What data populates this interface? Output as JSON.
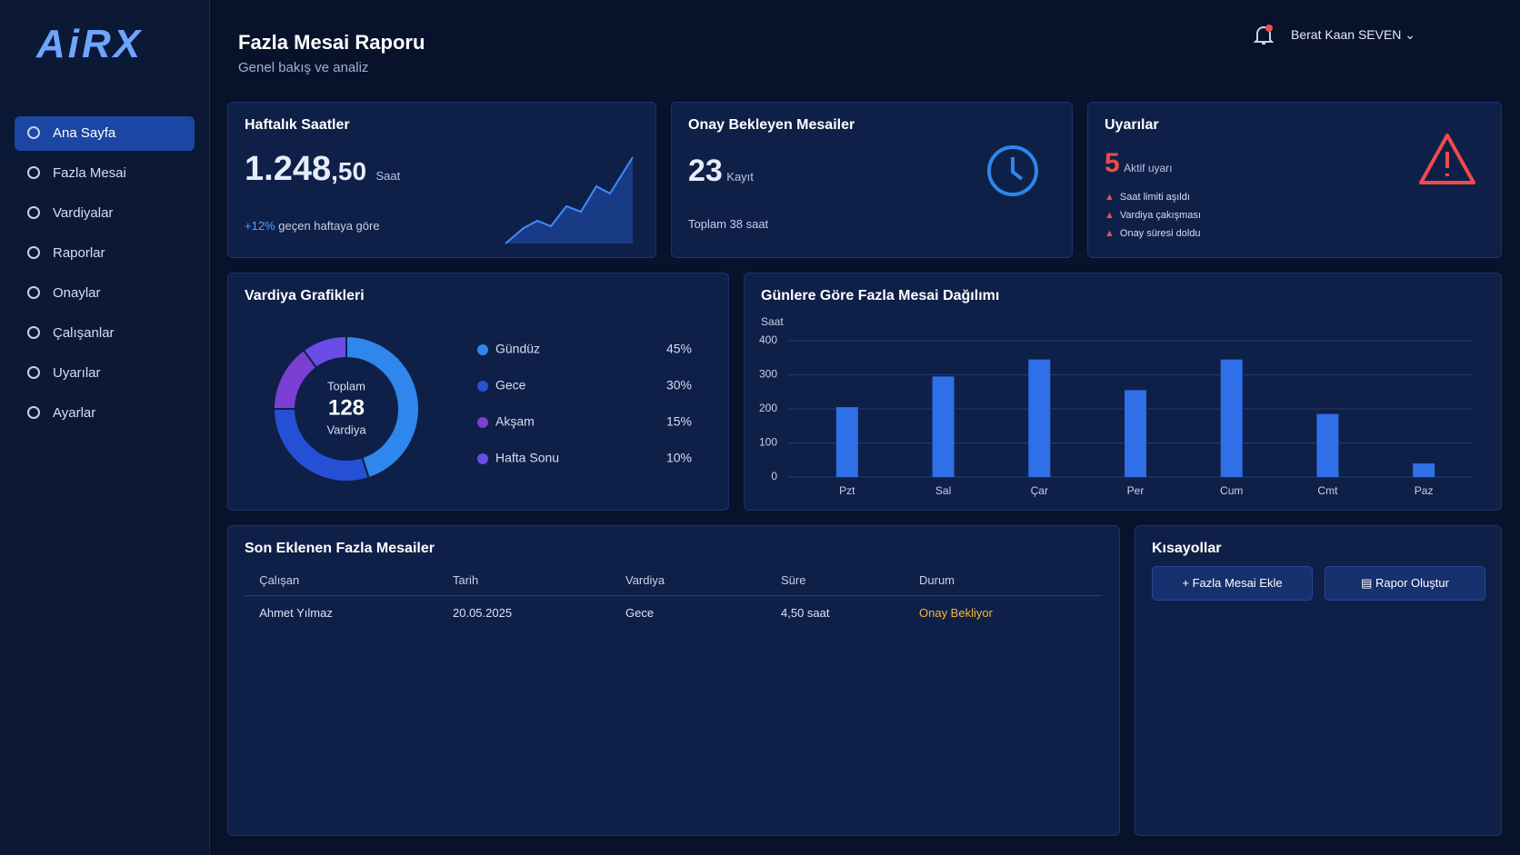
{
  "sidebar": {
    "logo": "AiRX",
    "nav": [
      "Ana Sayfa",
      "Fazla Mesai",
      "Vardiyalar",
      "Raporlar",
      "Onaylar",
      "Çalışanlar",
      "Uyarılar",
      "Ayarlar"
    ]
  },
  "header": {
    "title": "Fazla Mesai Raporu",
    "subtitle": "Genel bakış ve analiz",
    "user": "Berat Kaan SEVEN"
  },
  "weekly_hours": {
    "title": "Haftalık Saatler",
    "value": "1.248",
    "decimals": ",50",
    "unit": "Saat",
    "change": "+12%",
    "change_note": "geçen haftaya göre"
  },
  "pending": {
    "title": "Onay Bekleyen Mesailer",
    "value": "23",
    "unit": "Kayıt",
    "note": "Toplam 38 saat"
  },
  "alerts": {
    "title": "Uyarılar",
    "value": "5",
    "unit": "Aktif uyarı",
    "items": [
      "Saat limiti aşıldı",
      "Vardiya çakışması",
      "Onay süresi doldu"
    ]
  },
  "chart_data": [
    {
      "type": "pie",
      "title": "Vardiya Grafikleri",
      "center_label": "Toplam",
      "center_value": 128,
      "center_unit": "Vardiya",
      "categories": [
        "Gündüz",
        "Gece",
        "Akşam",
        "Hafta Sonu"
      ],
      "values": [
        45,
        30,
        15,
        10
      ],
      "value_labels": [
        "45%",
        "30%",
        "15%",
        "10%"
      ],
      "colors": [
        "#2f86ec",
        "#2550d6",
        "#7b3fd4",
        "#6a4de6"
      ]
    },
    {
      "type": "bar",
      "title": "Günlere Göre Fazla Mesai Dağılımı",
      "y_label": "Saat",
      "categories": [
        "Pzt",
        "Sal",
        "Çar",
        "Per",
        "Cum",
        "Cmt",
        "Paz"
      ],
      "values": [
        205,
        295,
        345,
        255,
        345,
        185,
        40
      ],
      "color": "#2f6fe8",
      "ylim": [
        0,
        400
      ],
      "yticks": [
        0,
        100,
        200,
        300,
        400
      ],
      "grid": true
    }
  ],
  "recent": {
    "title": "Son Eklenen Fazla Mesailer",
    "columns": [
      "Çalışan",
      "Tarih",
      "Vardiya",
      "Süre",
      "Durum"
    ],
    "rows": [
      [
        "Ahmet Yılmaz",
        "20.05.2025",
        "Gece",
        "4,50 saat",
        "Onay Bekliyor"
      ]
    ]
  },
  "shortcuts": {
    "title": "Kısayollar",
    "buttons": [
      "Fazla Mesai Ekle",
      "Rapor Oluştur"
    ]
  }
}
